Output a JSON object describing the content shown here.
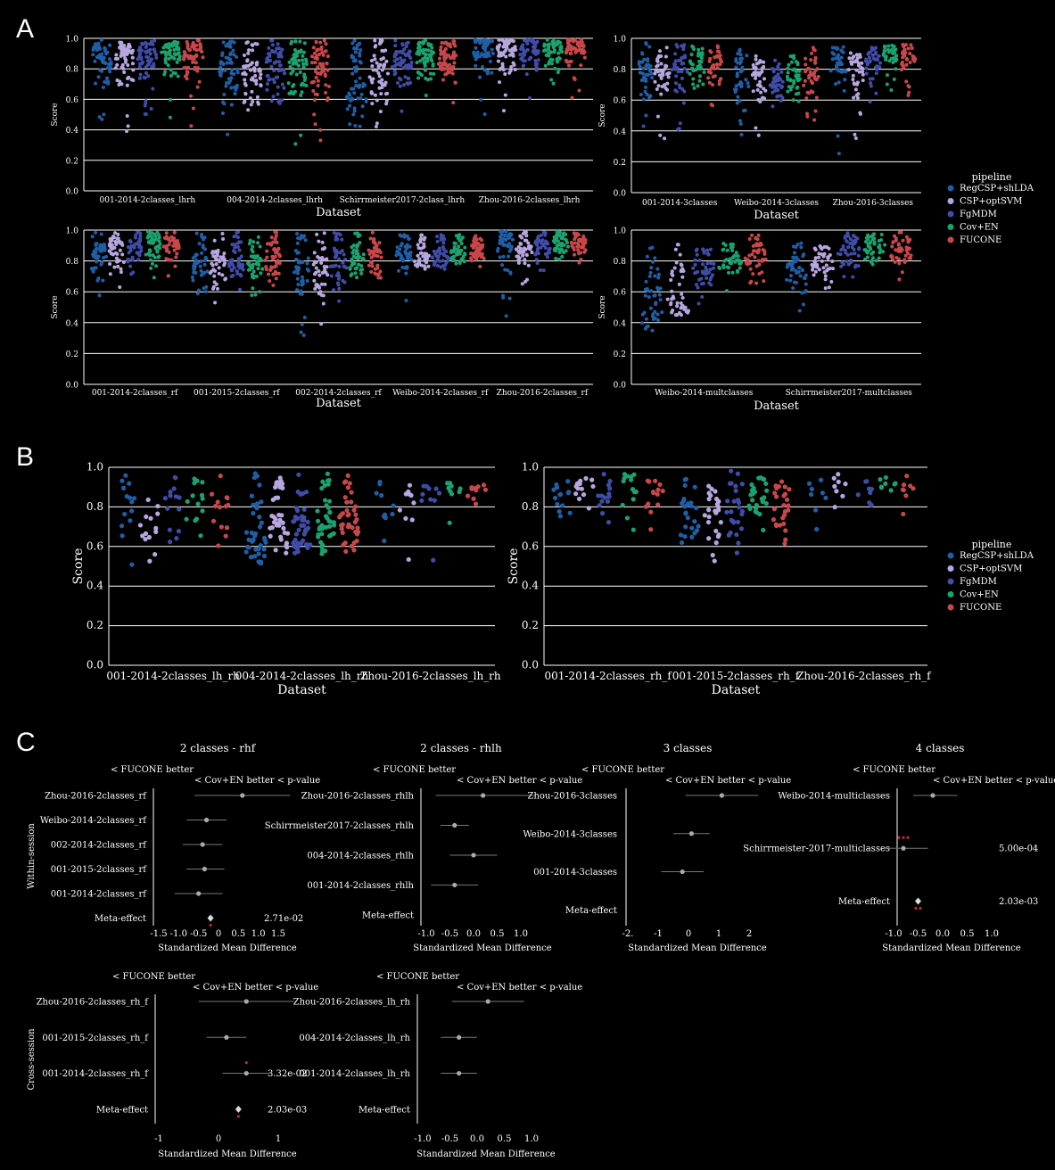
{
  "panel_letters": {
    "a": "A",
    "b": "B",
    "c": "C"
  },
  "legend": {
    "title": "pipeline",
    "items": [
      {
        "label": "RegCSP+shLDA",
        "color": "#1f5fa6"
      },
      {
        "label": "CSP+optSVM",
        "color": "#b7a6e0"
      },
      {
        "label": "FgMDM",
        "color": "#3f4da8"
      },
      {
        "label": "Cov+EN",
        "color": "#1aa36f"
      },
      {
        "label": "FUCONE",
        "color": "#c9474b"
      }
    ]
  },
  "chart_data": [
    {
      "id": "A1",
      "type": "scatter",
      "subtype": "swarm",
      "xlabel": "Dataset",
      "ylabel": "Score",
      "ylim": [
        0,
        1
      ],
      "yticks": [
        "0.0",
        "0.2",
        "0.4",
        "0.6",
        "0.8",
        "1.0"
      ],
      "categories": [
        "001-2014-2classes_lhrh",
        "004-2014-2classes_lhrh",
        "Schirrmeister2017-2class_lhrh",
        "Zhou-2016-2classes_lhrh"
      ],
      "series": [
        {
          "name": "RegCSP+shLDA",
          "median": [
            0.82,
            0.72,
            0.6,
            0.88
          ],
          "min": [
            0.35,
            0.28,
            0.4,
            0.39
          ],
          "max": [
            0.99,
            0.99,
            0.99,
            0.99
          ]
        },
        {
          "name": "CSP+optSVM",
          "median": [
            0.82,
            0.72,
            0.7,
            0.88
          ],
          "min": [
            0.38,
            0.33,
            0.42,
            0.39
          ],
          "max": [
            0.99,
            0.99,
            0.99,
            0.99
          ]
        },
        {
          "name": "FgMDM",
          "median": [
            0.84,
            0.75,
            0.8,
            0.9
          ],
          "min": [
            0.45,
            0.25,
            0.45,
            0.55
          ],
          "max": [
            0.99,
            0.99,
            0.99,
            0.99
          ]
        },
        {
          "name": "Cov+EN",
          "median": [
            0.86,
            0.76,
            0.82,
            0.9
          ],
          "min": [
            0.48,
            0.3,
            0.5,
            0.6
          ],
          "max": [
            0.99,
            0.99,
            0.99,
            0.99
          ]
        },
        {
          "name": "FUCONE",
          "median": [
            0.86,
            0.76,
            0.8,
            0.9
          ],
          "min": [
            0.42,
            0.25,
            0.48,
            0.55
          ],
          "max": [
            0.99,
            0.99,
            0.99,
            0.99
          ]
        }
      ]
    },
    {
      "id": "A2",
      "type": "scatter",
      "subtype": "swarm",
      "xlabel": "Dataset",
      "ylabel": "Score",
      "ylim": [
        0,
        1
      ],
      "yticks": [
        "0.0",
        "0.2",
        "0.4",
        "0.6",
        "0.8",
        "1.0"
      ],
      "categories": [
        "001-2014-3classes",
        "Weibo-2014-3classes",
        "Zhou-2016-3classes"
      ],
      "series": [
        {
          "name": "RegCSP+shLDA",
          "median": [
            0.72,
            0.7,
            0.78
          ],
          "min": [
            0.4,
            0.37,
            0.23
          ],
          "max": [
            0.99,
            0.93,
            0.95
          ]
        },
        {
          "name": "CSP+optSVM",
          "median": [
            0.74,
            0.7,
            0.76
          ],
          "min": [
            0.32,
            0.37,
            0.23
          ],
          "max": [
            0.95,
            0.9,
            0.93
          ]
        },
        {
          "name": "FgMDM",
          "median": [
            0.78,
            0.68,
            0.82
          ],
          "min": [
            0.4,
            0.55,
            0.55
          ],
          "max": [
            0.96,
            0.88,
            0.95
          ]
        },
        {
          "name": "Cov+EN",
          "median": [
            0.8,
            0.72,
            0.86
          ],
          "min": [
            0.45,
            0.5,
            0.62
          ],
          "max": [
            0.96,
            0.9,
            0.96
          ]
        },
        {
          "name": "FUCONE",
          "median": [
            0.8,
            0.72,
            0.86
          ],
          "min": [
            0.5,
            0.37,
            0.63
          ],
          "max": [
            0.96,
            0.95,
            0.96
          ]
        }
      ]
    },
    {
      "id": "A3",
      "type": "scatter",
      "subtype": "swarm",
      "xlabel": "Dataset",
      "ylabel": "Score",
      "ylim": [
        0,
        1
      ],
      "yticks": [
        "0.0",
        "0.2",
        "0.4",
        "0.6",
        "0.8",
        "1.0"
      ],
      "categories": [
        "001-2014-2classes_rf",
        "001-2015-2classes_rf",
        "002-2014-2classes_rf",
        "Weibo-2014-2classes_rf",
        "Zhou-2016-2classes_rf"
      ],
      "series": [
        {
          "name": "RegCSP+shLDA",
          "median": [
            0.82,
            0.72,
            0.72,
            0.8,
            0.86
          ],
          "min": [
            0.55,
            0.43,
            0.31,
            0.53,
            0.35
          ],
          "max": [
            0.99,
            0.99,
            0.99,
            0.97,
            0.99
          ]
        },
        {
          "name": "CSP+optSVM",
          "median": [
            0.83,
            0.72,
            0.7,
            0.8,
            0.86
          ],
          "min": [
            0.52,
            0.45,
            0.38,
            0.73,
            0.65
          ],
          "max": [
            0.99,
            0.99,
            0.99,
            0.97,
            0.99
          ]
        },
        {
          "name": "FgMDM",
          "median": [
            0.86,
            0.75,
            0.76,
            0.82,
            0.88
          ],
          "min": [
            0.62,
            0.6,
            0.5,
            0.72,
            0.72
          ],
          "max": [
            0.99,
            0.99,
            0.99,
            0.97,
            0.99
          ]
        },
        {
          "name": "Cov+EN",
          "median": [
            0.88,
            0.78,
            0.78,
            0.84,
            0.9
          ],
          "min": [
            0.65,
            0.55,
            0.6,
            0.73,
            0.78
          ],
          "max": [
            0.99,
            0.99,
            0.99,
            0.97,
            0.99
          ]
        },
        {
          "name": "FUCONE",
          "median": [
            0.88,
            0.8,
            0.78,
            0.84,
            0.9
          ],
          "min": [
            0.65,
            0.58,
            0.58,
            0.73,
            0.78
          ],
          "max": [
            0.99,
            0.99,
            0.99,
            0.97,
            0.99
          ]
        }
      ]
    },
    {
      "id": "A4",
      "type": "scatter",
      "subtype": "swarm",
      "xlabel": "Dataset",
      "ylabel": "Score",
      "ylim": [
        0,
        1
      ],
      "yticks": [
        "0.0",
        "0.2",
        "0.4",
        "0.6",
        "0.8",
        "1.0"
      ],
      "categories": [
        "Weibo-2014-multclasses",
        "Schirrmeister2017-multclasses"
      ],
      "series": [
        {
          "name": "RegCSP+shLDA",
          "median": [
            0.5,
            0.7
          ],
          "min": [
            0.31,
            0.42
          ],
          "max": [
            0.91,
            0.92
          ]
        },
        {
          "name": "CSP+optSVM",
          "median": [
            0.5,
            0.74
          ],
          "min": [
            0.45,
            0.4
          ],
          "max": [
            0.91,
            0.92
          ]
        },
        {
          "name": "FgMDM",
          "median": [
            0.72,
            0.84
          ],
          "min": [
            0.48,
            0.57
          ],
          "max": [
            0.9,
            0.99
          ]
        },
        {
          "name": "Cov+EN",
          "median": [
            0.78,
            0.86
          ],
          "min": [
            0.58,
            0.62
          ],
          "max": [
            0.92,
            0.99
          ]
        },
        {
          "name": "FUCONE",
          "median": [
            0.8,
            0.86
          ],
          "min": [
            0.58,
            0.65
          ],
          "max": [
            0.97,
            0.99
          ]
        }
      ]
    },
    {
      "id": "B1",
      "type": "scatter",
      "subtype": "swarm",
      "xlabel": "Dataset",
      "ylabel": "Score",
      "ylim": [
        0,
        1
      ],
      "yticks": [
        "0.0",
        "0.2",
        "0.4",
        "0.6",
        "0.8",
        "1.0"
      ],
      "categories": [
        "001-2014-2classes_lh_rh",
        "004-2014-2classes_lh_rh",
        "Zhou-2016-2classes_lh_rh"
      ],
      "series": [
        {
          "name": "RegCSP+shLDA",
          "median": [
            0.74,
            0.62,
            0.8
          ],
          "min": [
            0.49,
            0.5,
            0.51
          ],
          "max": [
            0.97,
            0.97,
            0.93
          ]
        },
        {
          "name": "CSP+optSVM",
          "median": [
            0.74,
            0.66,
            0.82
          ],
          "min": [
            0.51,
            0.52,
            0.52
          ],
          "max": [
            0.97,
            0.97,
            0.93
          ]
        },
        {
          "name": "FgMDM",
          "median": [
            0.76,
            0.66,
            0.82
          ],
          "min": [
            0.5,
            0.53,
            0.49
          ],
          "max": [
            0.97,
            0.97,
            0.91
          ]
        },
        {
          "name": "Cov+EN",
          "median": [
            0.76,
            0.68,
            0.86
          ],
          "min": [
            0.5,
            0.51,
            0.54
          ],
          "max": [
            0.97,
            0.97,
            0.92
          ]
        },
        {
          "name": "FUCONE",
          "median": [
            0.76,
            0.68,
            0.86
          ],
          "min": [
            0.52,
            0.49,
            0.52
          ],
          "max": [
            0.97,
            0.97,
            0.93
          ]
        }
      ]
    },
    {
      "id": "B2",
      "type": "scatter",
      "subtype": "swarm",
      "xlabel": "Dataset",
      "ylabel": "Score",
      "ylim": [
        0,
        1
      ],
      "yticks": [
        "0.0",
        "0.2",
        "0.4",
        "0.6",
        "0.8",
        "1.0"
      ],
      "categories": [
        "001-2014-2classes_rh_f",
        "001-2015-2classes_rh_f",
        "Zhou-2016-2classes_rh_f"
      ],
      "series": [
        {
          "name": "RegCSP+shLDA",
          "median": [
            0.84,
            0.72,
            0.86
          ],
          "min": [
            0.55,
            0.48,
            0.63
          ],
          "max": [
            0.95,
            0.97,
            0.95
          ]
        },
        {
          "name": "CSP+optSVM",
          "median": [
            0.86,
            0.72,
            0.86
          ],
          "min": [
            0.6,
            0.5,
            0.68
          ],
          "max": [
            0.95,
            0.97,
            0.97
          ]
        },
        {
          "name": "FgMDM",
          "median": [
            0.84,
            0.76,
            0.84
          ],
          "min": [
            0.62,
            0.53,
            0.57
          ],
          "max": [
            0.97,
            0.99,
            0.95
          ]
        },
        {
          "name": "Cov+EN",
          "median": [
            0.86,
            0.78,
            0.88
          ],
          "min": [
            0.68,
            0.52,
            0.57
          ],
          "max": [
            0.97,
            0.97,
            0.95
          ]
        },
        {
          "name": "FUCONE",
          "median": [
            0.86,
            0.78,
            0.86
          ],
          "min": [
            0.64,
            0.54,
            0.53
          ],
          "max": [
            0.95,
            0.97,
            0.97
          ]
        }
      ]
    }
  ],
  "panel_c": {
    "column_titles": [
      "2 classes - rhf",
      "2 classes - rhlh",
      "3 classes",
      "4 classes"
    ],
    "row_labels": [
      "Within-session",
      "Cross-session"
    ],
    "fucone_better": "< FUCONE better",
    "cov_better": "< Cov+EN better < p-value",
    "xlabel": "Standardized Mean Difference",
    "plots": [
      {
        "id": "C1",
        "xticks": [
          "-1.5",
          "-1.0",
          "-0.5",
          "0",
          "0.5",
          "1.0",
          "1.5"
        ],
        "xlim": [
          -1.5,
          1.5
        ],
        "rows": [
          {
            "label": "Zhou-2016-2classes_rf",
            "smd": 0.6,
            "lo": -0.6,
            "hi": 1.8
          },
          {
            "label": "Weibo-2014-2classes_rf",
            "smd": -0.3,
            "lo": -0.8,
            "hi": 0.2
          },
          {
            "label": "002-2014-2classes_rf",
            "smd": -0.4,
            "lo": -0.9,
            "hi": 0.1
          },
          {
            "label": "001-2015-2classes_rf",
            "smd": -0.35,
            "lo": -0.8,
            "hi": 0.15
          },
          {
            "label": "001-2014-2classes_rf",
            "smd": -0.5,
            "lo": -1.1,
            "hi": 0.1
          },
          {
            "label": "Meta-effect",
            "smd": -0.2,
            "lo": -0.2,
            "hi": -0.2,
            "meta": true,
            "pvalue": "2.71e-02",
            "sig": 1
          }
        ]
      },
      {
        "id": "C2",
        "xticks": [
          "-1.0",
          "-0.5",
          "0.0",
          "0.5",
          "1.0"
        ],
        "xlim": [
          -1.0,
          1.0
        ],
        "rows": [
          {
            "label": "Zhou-2016-2classes_rhlh",
            "smd": 0.2,
            "lo": -0.8,
            "hi": 1.3
          },
          {
            "label": "Schirrmeister2017-2classes_rhlh",
            "smd": -0.4,
            "lo": -0.7,
            "hi": -0.1
          },
          {
            "label": "004-2014-2classes_rhlh",
            "smd": 0.0,
            "lo": -0.5,
            "hi": 0.5
          },
          {
            "label": "001-2014-2classes_rhlh",
            "smd": -0.4,
            "lo": -0.9,
            "hi": 0.1
          },
          {
            "label": "Meta-effect",
            "smd": null,
            "lo": null,
            "hi": null,
            "meta": true,
            "pvalue": "",
            "sig": 0
          }
        ]
      },
      {
        "id": "C3",
        "xticks": [
          "-2.",
          "-1",
          "0",
          "1",
          "2"
        ],
        "xlim": [
          -2,
          2
        ],
        "rows": [
          {
            "label": "Zhou-2016-3classes",
            "smd": 1.1,
            "lo": -0.1,
            "hi": 2.3
          },
          {
            "label": "Weibo-2014-3classes",
            "smd": 0.1,
            "lo": -0.5,
            "hi": 0.7
          },
          {
            "label": "001-2014-3classes",
            "smd": -0.2,
            "lo": -0.9,
            "hi": 0.5
          },
          {
            "label": "Meta-effect",
            "smd": null,
            "lo": null,
            "hi": null,
            "meta": true,
            "pvalue": "",
            "sig": 0
          }
        ]
      },
      {
        "id": "C4",
        "xticks": [
          "-1.0",
          "-0.5",
          "0.0",
          "0.5",
          "1.0"
        ],
        "xlim": [
          -1.0,
          1.0
        ],
        "rows": [
          {
            "label": "Weibo-2014-multiclasses",
            "smd": -0.2,
            "lo": -0.6,
            "hi": 0.3
          },
          {
            "label": "Schirrmeister-2017-multiclasses",
            "smd": -0.8,
            "lo": -1.2,
            "hi": -0.3,
            "pvalue": "5.00e-04",
            "sig": 3
          },
          {
            "label": "Meta-effect",
            "smd": -0.5,
            "lo": -0.5,
            "hi": -0.5,
            "meta": true,
            "pvalue": "2.03e-03",
            "sig": 2
          }
        ]
      },
      {
        "id": "C5",
        "xticks": [
          "-1",
          "0",
          "1"
        ],
        "xlim": [
          -1.5,
          1.5
        ],
        "rows": [
          {
            "label": "Zhou-2016-2classes_rh_f",
            "smd": 0.7,
            "lo": -0.5,
            "hi": 1.9
          },
          {
            "label": "001-2015-2classes_rh_f",
            "smd": 0.2,
            "lo": -0.3,
            "hi": 0.7
          },
          {
            "label": "001-2014-2classes_rh_f",
            "smd": 0.7,
            "lo": 0.1,
            "hi": 1.3,
            "pvalue": "3.32e-02",
            "sig": 1
          },
          {
            "label": "Meta-effect",
            "smd": 0.5,
            "lo": 0.5,
            "hi": 0.5,
            "meta": true,
            "pvalue": "2.03e-03",
            "sig": 1
          }
        ]
      },
      {
        "id": "C6",
        "xticks": [
          "-1.0",
          "-0.5",
          "0.0",
          "0.5",
          "1.0"
        ],
        "xlim": [
          -1.5,
          1.5
        ],
        "rows": [
          {
            "label": "Zhou-2016-2classes_lh_rh",
            "smd": 0.3,
            "lo": -0.7,
            "hi": 1.3
          },
          {
            "label": "004-2014-2classes_lh_rh",
            "smd": -0.5,
            "lo": -1.0,
            "hi": 0.0
          },
          {
            "label": "001-2014-2classes_lh_rh",
            "smd": -0.5,
            "lo": -1.0,
            "hi": 0.0
          },
          {
            "label": "Meta-effect",
            "smd": null,
            "lo": null,
            "hi": null,
            "meta": true,
            "pvalue": "",
            "sig": 0
          }
        ]
      }
    ]
  }
}
